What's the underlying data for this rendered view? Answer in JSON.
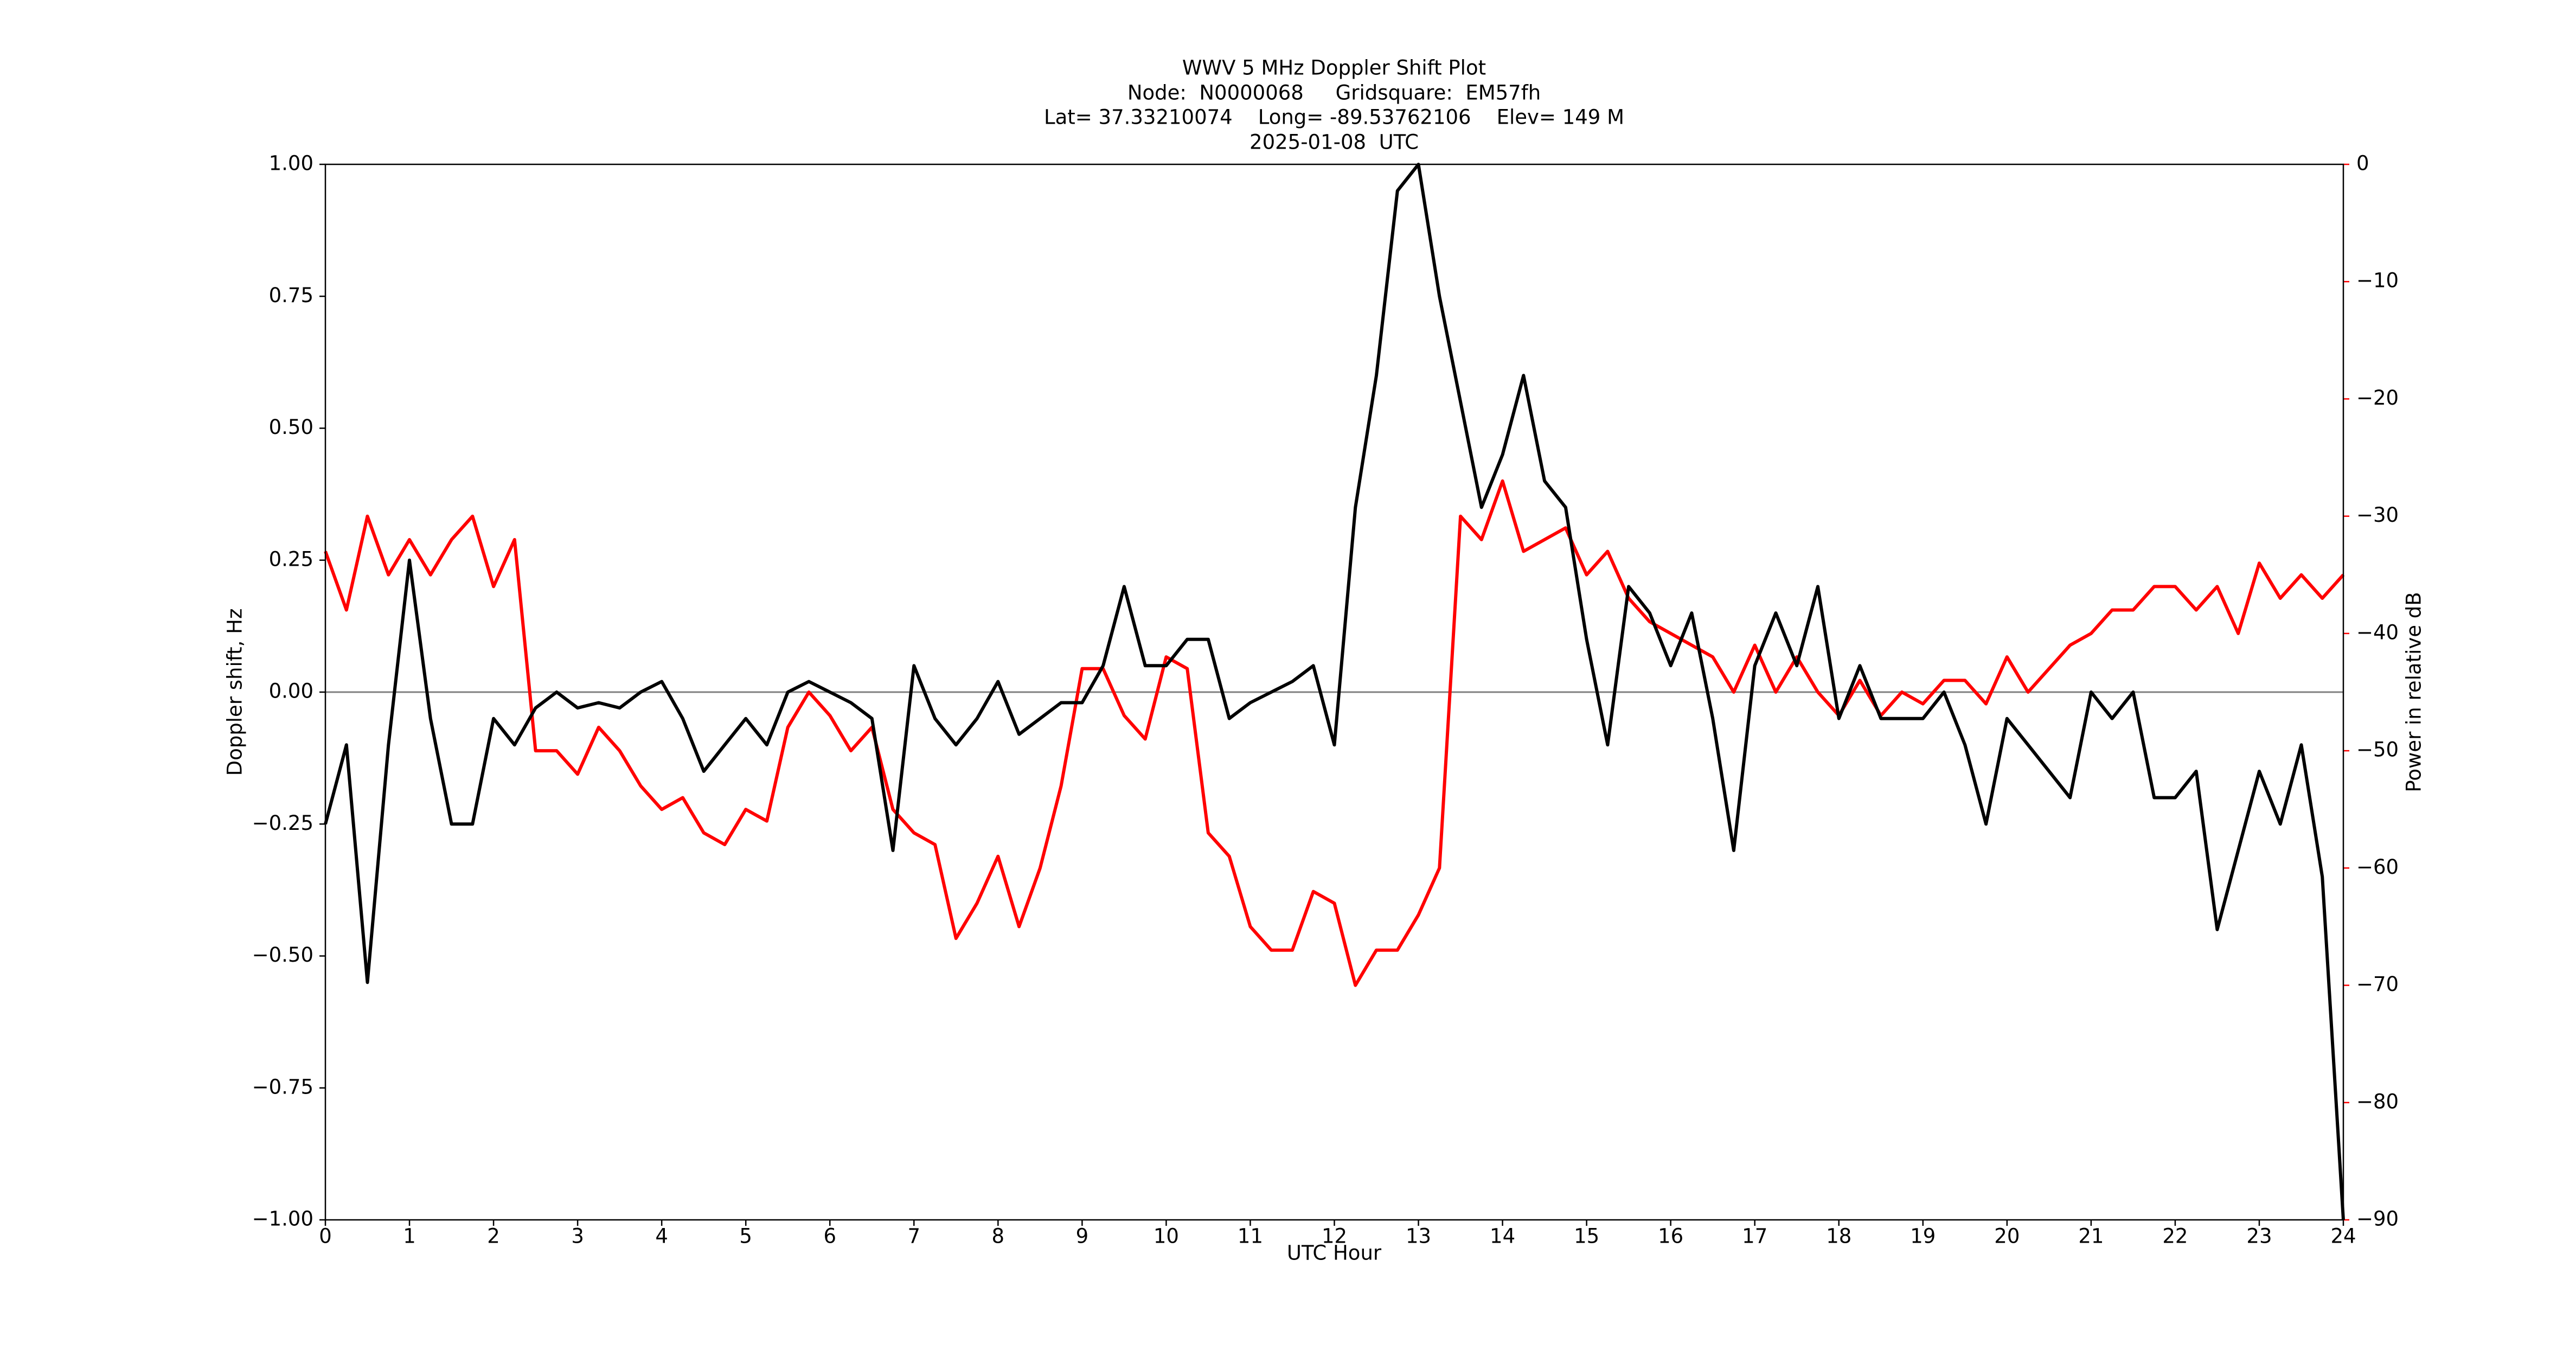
{
  "chart_data": {
    "type": "line",
    "title": [
      "WWV 5 MHz Doppler Shift Plot",
      "Node:  N0000068     Gridsquare:  EM57fh",
      "Lat= 37.33210074    Long= -89.53762106    Elev= 149 M",
      "2025-01-08  UTC"
    ],
    "x_label": "UTC Hour",
    "y_label": "Doppler shift, Hz",
    "y2_label": "Power in relative dB",
    "x": [
      0,
      0.25,
      0.5,
      0.75,
      1,
      1.25,
      1.5,
      1.75,
      2,
      2.25,
      2.5,
      2.75,
      3,
      3.25,
      3.5,
      3.75,
      4,
      4.25,
      4.5,
      4.75,
      5,
      5.25,
      5.5,
      5.75,
      6,
      6.25,
      6.5,
      6.75,
      7,
      7.25,
      7.5,
      7.75,
      8,
      8.25,
      8.5,
      8.75,
      9,
      9.25,
      9.5,
      9.75,
      10,
      10.25,
      10.5,
      10.75,
      11,
      11.25,
      11.5,
      11.75,
      12,
      12.25,
      12.5,
      12.75,
      13,
      13.25,
      13.5,
      13.75,
      14,
      14.25,
      14.5,
      14.75,
      15,
      15.25,
      15.5,
      15.75,
      16,
      16.25,
      16.5,
      16.75,
      17,
      17.25,
      17.5,
      17.75,
      18,
      18.25,
      18.5,
      18.75,
      19,
      19.25,
      19.5,
      19.75,
      20,
      20.25,
      20.5,
      20.75,
      21,
      21.25,
      21.5,
      21.75,
      22,
      22.25,
      22.5,
      22.75,
      23,
      23.25,
      23.5,
      23.75,
      24
    ],
    "series": [
      {
        "name": "Doppler shift",
        "color": "#000000",
        "values": [
          -0.25,
          -0.1,
          -0.55,
          -0.1,
          0.25,
          -0.05,
          -0.25,
          -0.25,
          -0.05,
          -0.1,
          -0.03,
          0.0,
          -0.03,
          -0.02,
          -0.03,
          0.0,
          0.02,
          -0.05,
          -0.15,
          -0.1,
          -0.05,
          -0.1,
          0.0,
          0.02,
          0.0,
          -0.02,
          -0.05,
          -0.3,
          0.05,
          -0.05,
          -0.1,
          -0.05,
          0.02,
          -0.08,
          -0.05,
          -0.02,
          -0.02,
          0.05,
          0.2,
          0.05,
          0.05,
          0.1,
          0.1,
          -0.05,
          -0.02,
          0.0,
          0.02,
          0.05,
          -0.1,
          0.35,
          0.6,
          0.95,
          1.0,
          0.75,
          0.55,
          0.35,
          0.45,
          0.6,
          0.4,
          0.35,
          0.1,
          -0.1,
          0.2,
          0.15,
          0.05,
          0.15,
          -0.05,
          -0.3,
          0.05,
          0.15,
          0.05,
          0.2,
          -0.05,
          0.05,
          -0.05,
          -0.05,
          -0.05,
          0.0,
          -0.1,
          -0.25,
          -0.05,
          -0.1,
          -0.15,
          -0.2,
          0.0,
          -0.05,
          0.0,
          -0.2,
          -0.2,
          -0.15,
          -0.45,
          -0.3,
          -0.15,
          -0.25,
          -0.1,
          -0.35,
          -1.0
        ]
      },
      {
        "name": "Power",
        "color": "#ff0000",
        "axis": "y2",
        "values": [
          -33,
          -38,
          -30,
          -35,
          -32,
          -35,
          -32,
          -30,
          -36,
          -32,
          -50,
          -50,
          -52,
          -48,
          -50,
          -53,
          -55,
          -54,
          -57,
          -58,
          -55,
          -56,
          -48,
          -45,
          -47,
          -50,
          -48,
          -55,
          -57,
          -58,
          -66,
          -63,
          -59,
          -65,
          -60,
          -53,
          -43,
          -43,
          -47,
          -49,
          -42,
          -43,
          -57,
          -59,
          -65,
          -67,
          -67,
          -62,
          -63,
          -70,
          -67,
          -67,
          -64,
          -60,
          -30,
          -32,
          -27,
          -33,
          -32,
          -31,
          -35,
          -33,
          -37,
          -39,
          -40,
          -41,
          -42,
          -45,
          -41,
          -45,
          -42,
          -45,
          -47,
          -44,
          -47,
          -45,
          -46,
          -44,
          -44,
          -46,
          -42,
          -45,
          -43,
          -41,
          -40,
          -38,
          -38,
          -36,
          -36,
          -38,
          -36,
          -40,
          -34,
          -37,
          -35,
          -37,
          -35
        ]
      }
    ],
    "xlim": [
      0,
      24
    ],
    "xticks": [
      0,
      1,
      2,
      3,
      4,
      5,
      6,
      7,
      8,
      9,
      10,
      11,
      12,
      13,
      14,
      15,
      16,
      17,
      18,
      19,
      20,
      21,
      22,
      23,
      24
    ],
    "ylim": [
      -1,
      1
    ],
    "yticks": [
      {
        "value": -1,
        "label": "−1.00"
      },
      {
        "value": -0.75,
        "label": "−0.75"
      },
      {
        "value": -0.5,
        "label": "−0.50"
      },
      {
        "value": -0.25,
        "label": "−0.25"
      },
      {
        "value": 0,
        "label": "0.00"
      },
      {
        "value": 0.25,
        "label": "0.25"
      },
      {
        "value": 0.5,
        "label": "0.50"
      },
      {
        "value": 0.75,
        "label": "0.75"
      },
      {
        "value": 1,
        "label": "1.00"
      }
    ],
    "y2lim": [
      -90,
      0
    ],
    "y2ticks": [
      0,
      {
        "value": -10,
        "label": "−10"
      },
      {
        "value": -20,
        "label": "−20"
      },
      {
        "value": -30,
        "label": "−30"
      },
      {
        "value": -40,
        "label": "−40"
      },
      {
        "value": -50,
        "label": "−50"
      },
      {
        "value": -60,
        "label": "−60"
      },
      {
        "value": -70,
        "label": "−70"
      },
      {
        "value": -80,
        "label": "−80"
      },
      {
        "value": -90,
        "label": "−90"
      }
    ],
    "y2_color": "#ff0000",
    "hline": {
      "value": 0,
      "color": "#808080"
    }
  }
}
